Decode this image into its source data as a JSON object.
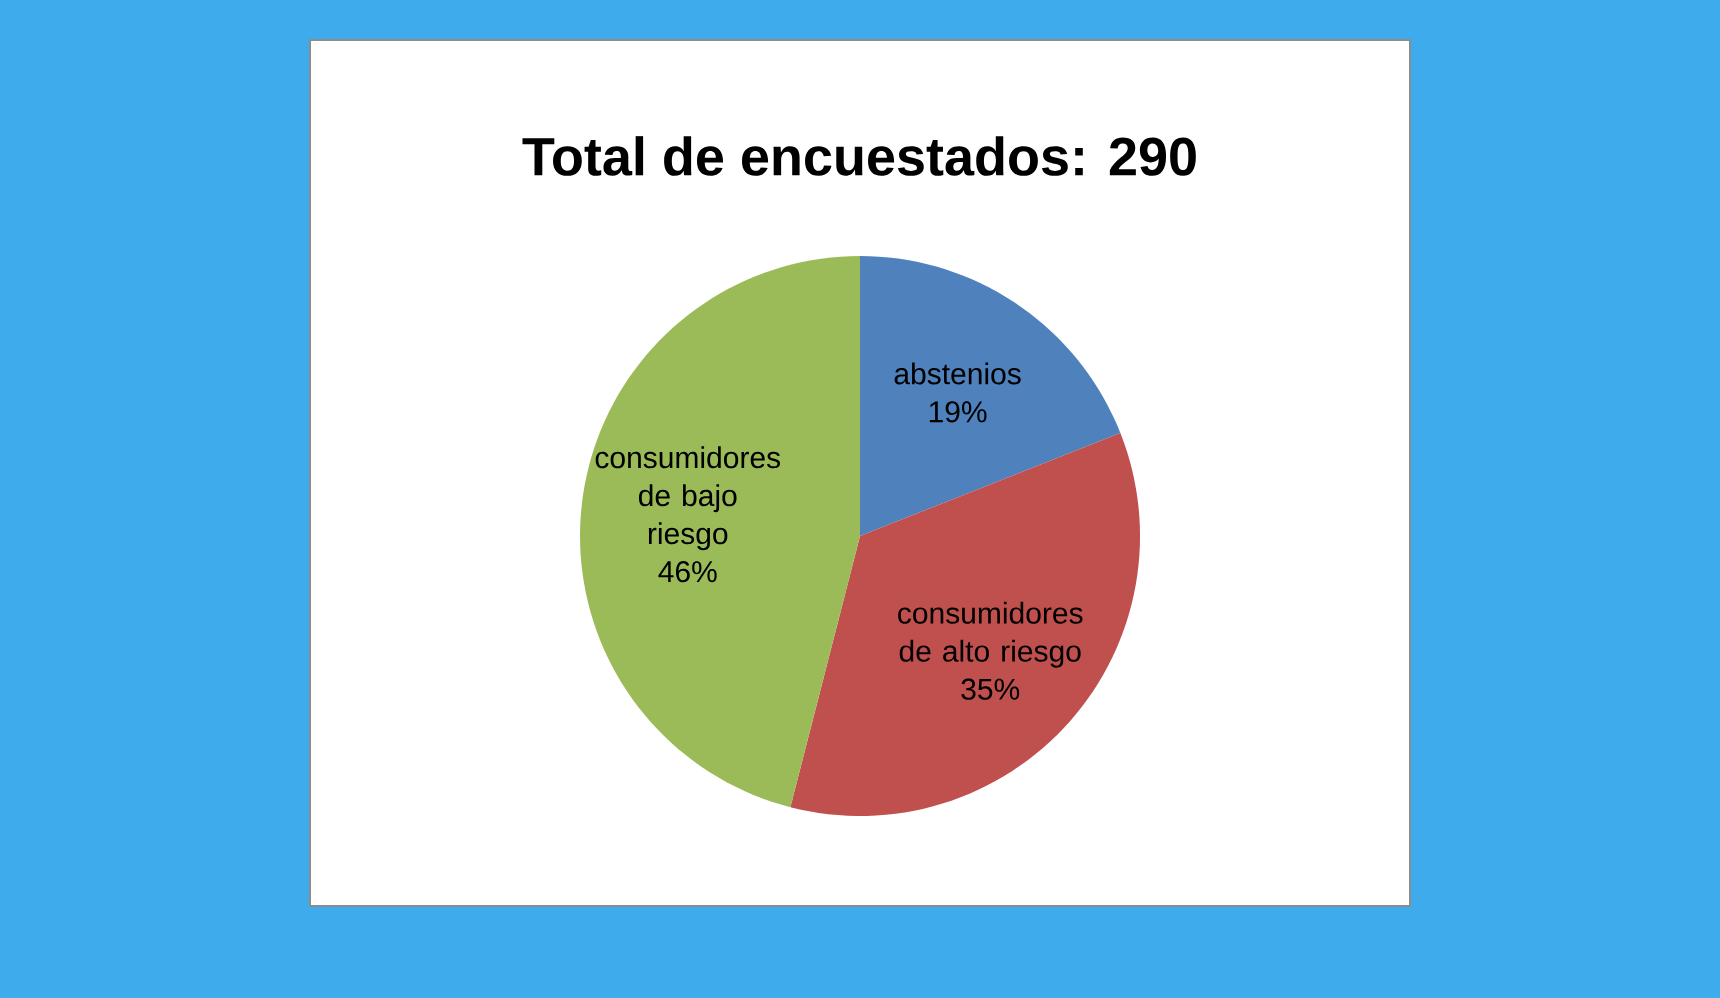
{
  "chart_data": {
    "type": "pie",
    "title": "Total de encuestados: 290",
    "categories": [
      "abstenios",
      "consumidores de alto riesgo",
      "consumidores de bajo riesgo"
    ],
    "values": [
      19,
      35,
      46
    ],
    "colors": [
      "#4f81bd",
      "#c0504d",
      "#9bbb59"
    ],
    "value_labels": [
      "19%",
      "35%",
      "46%"
    ]
  }
}
